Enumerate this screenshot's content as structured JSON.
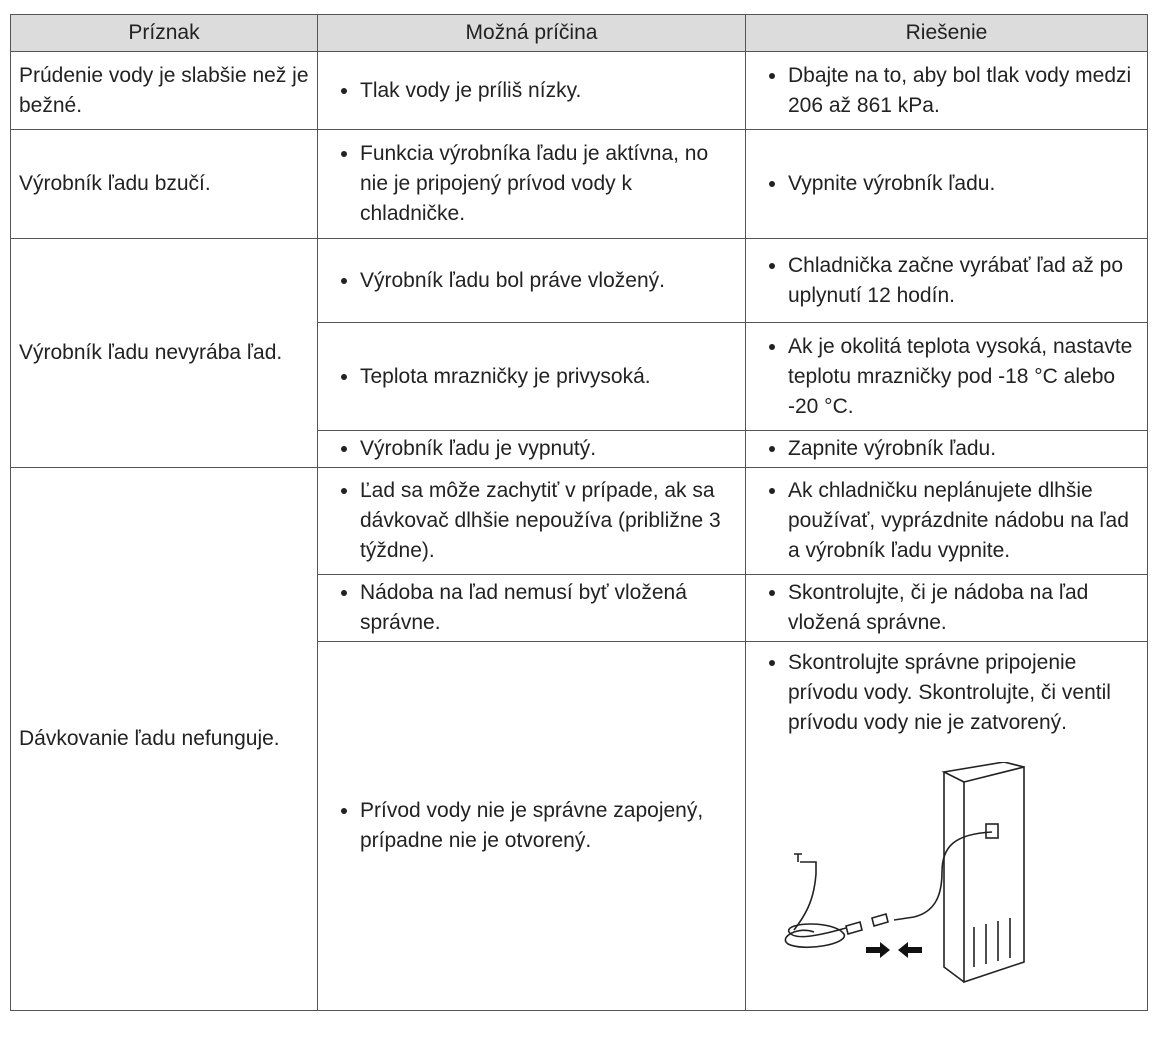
{
  "table": {
    "header": [
      "Príznak",
      "Možná príčina",
      "Riešenie"
    ],
    "rows": [
      {
        "symptom": "Prúdenie vody je slabšie než je bežné.",
        "items": [
          {
            "cause": "Tlak vody je príliš nízky.",
            "solution": "Dbajte na to, aby bol tlak vody medzi 206 až 861 kPa."
          }
        ]
      },
      {
        "symptom": "Výrobník ľadu bzučí.",
        "items": [
          {
            "cause": "Funkcia výrobníka ľadu je aktívna, no nie je pripojený prívod vody k chladničke.",
            "solution": "Vypnite výrobník ľadu."
          }
        ]
      },
      {
        "symptom": "Výrobník ľadu nevyrába ľad.",
        "items": [
          {
            "cause": "Výrobník ľadu bol práve vložený.",
            "solution": "Chladnička začne vyrábať ľad až po uplynutí 12 hodín."
          },
          {
            "cause": "Teplota mrazničky je privysoká.",
            "solution": "Ak je okolitá teplota vysoká, nastavte teplotu mrazničky pod -18 °C alebo -20 °C."
          },
          {
            "cause": "Výrobník ľadu je vypnutý.",
            "solution": "Zapnite výrobník ľadu."
          }
        ]
      },
      {
        "symptom": "Dávkovanie ľadu nefunguje.",
        "items": [
          {
            "cause": "Ľad sa môže zachytiť v prípade, ak sa dávkovač dlhšie nepoužíva (približne 3 týždne).",
            "solution": "Ak chladničku neplánujete dlhšie používať, vyprázdnite nádobu na ľad a výrobník ľadu vypnite."
          },
          {
            "cause": "Nádoba na ľad nemusí byť vložená správne.",
            "solution": "Skontrolujte, či je nádoba na ľad vložená správne."
          },
          {
            "cause": "Prívod vody nie je správne zapojený, prípadne nie je otvorený.",
            "solution": "Skontrolujte správne pripojenie prívodu vody. Skontrolujte, či ventil prívodu vody nie je zatvorený."
          }
        ]
      }
    ]
  }
}
